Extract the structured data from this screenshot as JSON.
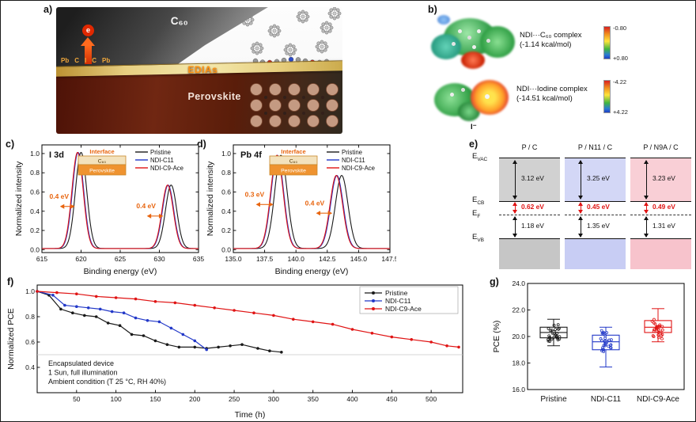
{
  "figure": {
    "panels": {
      "a": "a)",
      "b": "b)",
      "c": "c)",
      "d": "d)",
      "e": "e)",
      "f": "f)",
      "g": "g)"
    }
  },
  "panel_a": {
    "c60": "C₆₀",
    "electron": "e",
    "atoms": [
      "Pb",
      "C",
      "I",
      "C",
      "Pb"
    ],
    "edias": "EDIAs",
    "perovskite": "Perovskite"
  },
  "panel_b": {
    "complexes": [
      {
        "name": "NDI···C₆₀ complex",
        "energy": "(-1.14 kcal/mol)",
        "scale_min": "-0.80",
        "scale_max": "+0.80"
      },
      {
        "name": "NDI···Iodine complex",
        "energy": "(-14.51 kcal/mol)",
        "scale_min": "-4.22",
        "scale_max": "+4.22",
        "ion": "I⁻"
      }
    ]
  },
  "panel_e": {
    "axis_labels": [
      {
        "base": "E",
        "sub": "VAC"
      },
      {
        "base": "E",
        "sub": "CB"
      },
      {
        "base": "E",
        "sub": "F"
      },
      {
        "base": "E",
        "sub": "VB"
      }
    ],
    "columns": [
      {
        "header": "P / C",
        "color": "#c6c6c6",
        "top_gap": "3.12 eV",
        "fermi_gap": "0.62 eV",
        "bottom_gap": "1.18 eV"
      },
      {
        "header": "P / N11 / C",
        "color": "#c8cdf4",
        "top_gap": "3.25 eV",
        "fermi_gap": "0.45 eV",
        "bottom_gap": "1.35 eV"
      },
      {
        "header": "P / N9A / C",
        "color": "#f7c3cc",
        "top_gap": "3.23 eV",
        "fermi_gap": "0.49 eV",
        "bottom_gap": "1.31 eV"
      }
    ],
    "fermi_color": "#e01414"
  },
  "chart_data": [
    {
      "id": "xps-i3d",
      "type": "line",
      "title": "I 3d",
      "xlabel": "Binding energy (eV)",
      "ylabel": "Normalized intensity",
      "xlim": [
        615,
        635
      ],
      "ylim": [
        -0.03,
        1.09
      ],
      "xticks": {
        "values": [
          615,
          620,
          625,
          630,
          635
        ],
        "labels": [
          "615",
          "620",
          "625",
          "630",
          "635"
        ]
      },
      "yticks": {
        "values": [
          0,
          0.2,
          0.4,
          0.6,
          0.8,
          1
        ],
        "labels": [
          "0.0",
          "0.2",
          "0.4",
          "0.6",
          "0.8",
          "1.0"
        ]
      },
      "series": [
        {
          "name": "Pristine",
          "color": "#1a1a1a",
          "peaks": [
            {
              "center": 620.0,
              "height": 1.0,
              "sigma": 0.72
            },
            {
              "center": 631.5,
              "height": 0.66,
              "sigma": 0.72
            }
          ]
        },
        {
          "name": "NDI-C11",
          "color": "#2238c8",
          "peaks": [
            {
              "center": 619.62,
              "height": 1.0,
              "sigma": 0.72
            },
            {
              "center": 631.12,
              "height": 0.66,
              "sigma": 0.72
            }
          ]
        },
        {
          "name": "NDI-C9-Ace",
          "color": "#e01414",
          "peaks": [
            {
              "center": 619.55,
              "height": 1.0,
              "sigma": 0.72
            },
            {
              "center": 631.05,
              "height": 0.66,
              "sigma": 0.72
            }
          ]
        }
      ],
      "shift_labels": [
        {
          "text": "0.4 eV",
          "x": 617.2,
          "y": 0.53,
          "arrow_x1": 617.3,
          "arrow_x2": 619.2,
          "arrow_y": 0.45
        },
        {
          "text": "0.4 eV",
          "x": 628.3,
          "y": 0.43,
          "arrow_x1": 628.4,
          "arrow_x2": 630.5,
          "arrow_y": 0.35
        }
      ],
      "inset": {
        "title": "Interface",
        "layer_top": "C₆₀",
        "layer_bottom": "Perovskite"
      },
      "accent_color": "#e8650f"
    },
    {
      "id": "xps-pb4f",
      "type": "line",
      "title": "Pb 4f",
      "xlabel": "Binding energy (eV)",
      "ylabel": "Normalized intensity",
      "xlim": [
        135,
        147.5
      ],
      "ylim": [
        -0.03,
        1.09
      ],
      "xticks": {
        "values": [
          135,
          137.5,
          140,
          142.5,
          145,
          147.5
        ],
        "labels": [
          "135.0",
          "137.5",
          "140.0",
          "142.5",
          "145.0",
          "147.5"
        ]
      },
      "yticks": {
        "values": [
          0,
          0.2,
          0.4,
          0.6,
          0.8,
          1
        ],
        "labels": [
          "0.0",
          "0.2",
          "0.4",
          "0.6",
          "0.8",
          "1.0"
        ]
      },
      "series": [
        {
          "name": "Pristine",
          "color": "#1a1a1a",
          "peaks": [
            {
              "center": 138.8,
              "height": 0.97,
              "sigma": 0.5
            },
            {
              "center": 143.65,
              "height": 0.76,
              "sigma": 0.5
            }
          ]
        },
        {
          "name": "NDI-C11",
          "color": "#2238c8",
          "peaks": [
            {
              "center": 138.52,
              "height": 0.97,
              "sigma": 0.5
            },
            {
              "center": 143.27,
              "height": 0.76,
              "sigma": 0.5
            }
          ]
        },
        {
          "name": "NDI-C9-Ace",
          "color": "#e01414",
          "peaks": [
            {
              "center": 138.48,
              "height": 0.97,
              "sigma": 0.5
            },
            {
              "center": 143.22,
              "height": 0.76,
              "sigma": 0.5
            }
          ]
        }
      ],
      "shift_labels": [
        {
          "text": "0.3 eV",
          "x": 136.7,
          "y": 0.55,
          "arrow_x1": 136.8,
          "arrow_x2": 138.2,
          "arrow_y": 0.47
        },
        {
          "text": "0.4 eV",
          "x": 141.5,
          "y": 0.46,
          "arrow_x1": 141.6,
          "arrow_x2": 142.9,
          "arrow_y": 0.38
        }
      ],
      "inset": {
        "title": "Interface",
        "layer_top": "C₆₀",
        "layer_bottom": "Perovskite"
      },
      "accent_color": "#e8650f"
    },
    {
      "id": "stability",
      "type": "line",
      "xlabel": "Time (h)",
      "ylabel": "Normalized PCE",
      "xlim": [
        0,
        540
      ],
      "ylim": [
        0.2,
        1.05
      ],
      "xticks": {
        "values": [
          50,
          100,
          150,
          200,
          250,
          300,
          350,
          400,
          450,
          500
        ],
        "labels": [
          "50",
          "100",
          "150",
          "200",
          "250",
          "300",
          "350",
          "400",
          "450",
          "500"
        ]
      },
      "yticks": {
        "values": [
          0.4,
          0.6,
          0.8,
          1.0
        ],
        "labels": [
          "0.4",
          "0.6",
          "0.8",
          "1.0"
        ]
      },
      "gridlines_y": [
        0.5
      ],
      "series": [
        {
          "name": "Pristine",
          "color": "#1a1a1a",
          "x": [
            0,
            15,
            30,
            45,
            60,
            75,
            90,
            105,
            120,
            135,
            150,
            165,
            180,
            200,
            215,
            230,
            245,
            260,
            280,
            295,
            310
          ],
          "y": [
            1.0,
            0.97,
            0.86,
            0.83,
            0.81,
            0.8,
            0.75,
            0.73,
            0.66,
            0.65,
            0.61,
            0.58,
            0.56,
            0.56,
            0.55,
            0.56,
            0.57,
            0.58,
            0.55,
            0.53,
            0.52
          ]
        },
        {
          "name": "NDI-C11",
          "color": "#2238c8",
          "x": [
            0,
            20,
            35,
            50,
            65,
            80,
            95,
            110,
            125,
            140,
            155,
            170,
            185,
            200,
            215
          ],
          "y": [
            1.0,
            0.97,
            0.89,
            0.88,
            0.87,
            0.86,
            0.84,
            0.83,
            0.79,
            0.77,
            0.76,
            0.71,
            0.66,
            0.61,
            0.54
          ]
        },
        {
          "name": "NDI-C9-Ace",
          "color": "#e01414",
          "x": [
            0,
            25,
            50,
            75,
            100,
            125,
            150,
            175,
            200,
            225,
            250,
            275,
            300,
            325,
            350,
            375,
            400,
            425,
            450,
            475,
            500,
            520,
            535
          ],
          "y": [
            1.0,
            0.99,
            0.98,
            0.96,
            0.95,
            0.94,
            0.92,
            0.91,
            0.89,
            0.87,
            0.85,
            0.83,
            0.81,
            0.78,
            0.76,
            0.74,
            0.7,
            0.67,
            0.64,
            0.62,
            0.6,
            0.57,
            0.56
          ]
        }
      ],
      "notes": [
        "Encapsulated device",
        "1 Sun, full illumination",
        "Ambient condition (T 25 °C, RH 40%)"
      ]
    },
    {
      "id": "pce-boxplot",
      "type": "box",
      "ylabel": "PCE (%)",
      "ylim": [
        16.0,
        24.0
      ],
      "yticks": {
        "values": [
          16,
          18,
          20,
          22,
          24
        ],
        "labels": [
          "16.0",
          "18.0",
          "20.0",
          "22.0",
          "24.0"
        ]
      },
      "categories": [
        "Pristine",
        "NDI-C11",
        "NDI-C9-Ace"
      ],
      "boxes": [
        {
          "name": "Pristine",
          "color": "#1a1a1a",
          "whisker_low": 19.3,
          "q1": 19.9,
          "median": 20.3,
          "q3": 20.7,
          "whisker_high": 21.3
        },
        {
          "name": "NDI-C11",
          "color": "#2238c8",
          "whisker_low": 17.7,
          "q1": 19.0,
          "median": 19.6,
          "q3": 20.1,
          "whisker_high": 20.7
        },
        {
          "name": "NDI-C9-Ace",
          "color": "#e01414",
          "whisker_low": 19.6,
          "q1": 20.3,
          "median": 20.7,
          "q3": 21.2,
          "whisker_high": 22.1
        }
      ]
    }
  ]
}
